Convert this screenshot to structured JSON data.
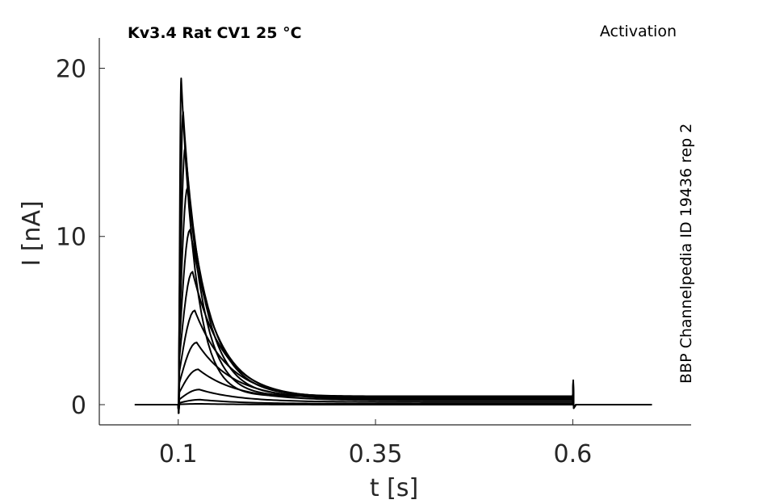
{
  "chart_data": {
    "type": "line",
    "title": "Kv3.4  Rat  CV1  25 °C",
    "protocol_label": "Activation",
    "side_label": "BBP Channelpedia ID 19436 rep 2",
    "xlabel": "t [s]",
    "ylabel": "I [nA]",
    "xlim": [
      0.0,
      0.75
    ],
    "ylim": [
      -1.2,
      21.8
    ],
    "x_ticks": [
      0.1,
      0.35,
      0.6
    ],
    "x_tick_labels": [
      "0.1",
      "0.35",
      "0.6"
    ],
    "y_ticks": [
      0,
      10,
      20
    ],
    "y_tick_labels": [
      "0",
      "10",
      "20"
    ],
    "grid": false,
    "legend": "none",
    "pulse": {
      "t_start": 0.1,
      "t_end": 0.6,
      "t_record_end": 0.7
    },
    "series": [
      {
        "peak": 0.05,
        "steady": 0.0
      },
      {
        "peak": 0.3,
        "steady": 0.05
      },
      {
        "peak": 0.9,
        "steady": 0.15
      },
      {
        "peak": 2.1,
        "steady": 0.25
      },
      {
        "peak": 3.7,
        "steady": 0.3
      },
      {
        "peak": 5.6,
        "steady": 0.35
      },
      {
        "peak": 7.9,
        "steady": 0.4
      },
      {
        "peak": 10.4,
        "steady": 0.45
      },
      {
        "peak": 12.9,
        "steady": 0.5
      },
      {
        "peak": 15.3,
        "steady": 0.5
      },
      {
        "peak": 17.4,
        "steady": 0.5
      },
      {
        "peak": 19.4,
        "steady": 0.5
      }
    ]
  }
}
